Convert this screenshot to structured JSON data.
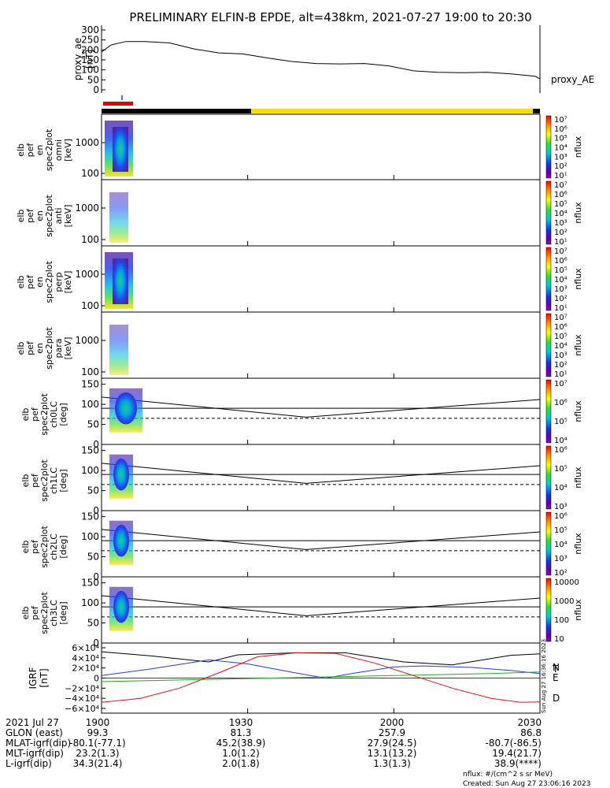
{
  "title": "PRELIMINARY ELFIN-B EPDE, alt=438km, 2021-07-27 19:00 to 20:30",
  "colors": {
    "line": "#000000",
    "eclipse": "#000000",
    "sunlit": "#ffdd00",
    "science": "#e00000",
    "tick": "#3a7fff",
    "n": "#1f3fd8",
    "e": "#22aa22",
    "d": "#dd1111"
  },
  "chart_data": [
    {
      "type": "line",
      "ylabel": [
        "proxy_ae",
        "[nT]"
      ],
      "yticks": [
        "300",
        "250",
        "200",
        "150",
        "100",
        "50",
        "0"
      ],
      "ylim": [
        0,
        300
      ],
      "legend": "proxy_AE",
      "x": [
        0,
        2,
        5,
        9,
        14,
        19,
        24,
        29,
        34,
        39,
        44,
        49,
        54,
        59,
        64,
        69,
        74,
        79,
        84,
        89,
        90
      ],
      "values": [
        190,
        225,
        242,
        242,
        235,
        205,
        185,
        180,
        160,
        142,
        132,
        130,
        132,
        120,
        95,
        88,
        86,
        88,
        80,
        68,
        55
      ]
    },
    {
      "type": "heatmap",
      "ylabel": [
        "elb",
        "pef",
        "en",
        "spec2plot",
        "omni",
        "[keV]"
      ],
      "yticks": [
        "1000",
        "100"
      ],
      "colorbar_ticks": [
        "10⁷",
        "10⁶",
        "10⁵",
        "10⁴",
        "10³",
        "10²",
        "10¹"
      ],
      "colorbar_label": "nflux"
    },
    {
      "type": "heatmap",
      "ylabel": [
        "elb",
        "pef",
        "en",
        "spec2plot",
        "anti",
        "[keV]"
      ],
      "yticks": [
        "1000",
        "100"
      ],
      "colorbar_ticks": [
        "10⁷",
        "10⁶",
        "10⁵",
        "10⁴",
        "10³",
        "10²",
        "10¹"
      ],
      "colorbar_label": "nflux"
    },
    {
      "type": "heatmap",
      "ylabel": [
        "elb",
        "pef",
        "en",
        "spec2plot",
        "perp",
        "[keV]"
      ],
      "yticks": [
        "1000",
        "100"
      ],
      "colorbar_ticks": [
        "10⁷",
        "10⁶",
        "10⁵",
        "10⁴",
        "10³",
        "10²",
        "10¹"
      ],
      "colorbar_label": "nflux"
    },
    {
      "type": "heatmap",
      "ylabel": [
        "elb",
        "pef",
        "en",
        "spec2plot",
        "para",
        "[keV]"
      ],
      "yticks": [
        "1000",
        "100"
      ],
      "colorbar_ticks": [
        "10⁷",
        "10⁶",
        "10⁵",
        "10⁴",
        "10³",
        "10²",
        "10¹"
      ],
      "colorbar_label": "nflux"
    },
    {
      "type": "heatmap",
      "ylabel": [
        "elb",
        "pef",
        "spec2plot",
        "ch0LC",
        "[deg]"
      ],
      "yticks": [
        "150",
        "100",
        "50",
        "0"
      ],
      "colorbar_ticks": [
        "10⁷",
        "10⁶",
        "10⁵",
        "10⁴"
      ],
      "colorbar_label": "nflux"
    },
    {
      "type": "heatmap",
      "ylabel": [
        "elb",
        "pef",
        "spec2plot",
        "ch1LC",
        "[deg]"
      ],
      "yticks": [
        "150",
        "100",
        "50",
        "0"
      ],
      "colorbar_ticks": [
        "10⁶",
        "10⁵",
        "10⁴",
        "10³"
      ],
      "colorbar_label": "nflux"
    },
    {
      "type": "heatmap",
      "ylabel": [
        "elb",
        "pef",
        "spec2plot",
        "ch2LC",
        "[deg]"
      ],
      "yticks": [
        "150",
        "100",
        "50",
        "0"
      ],
      "colorbar_ticks": [
        "10⁶",
        "10⁵",
        "10⁴",
        "10³",
        "10²"
      ],
      "colorbar_label": "nflux"
    },
    {
      "type": "heatmap",
      "ylabel": [
        "elb",
        "pef",
        "spec2plot",
        "ch3LC",
        "[deg]"
      ],
      "yticks": [
        "150",
        "100",
        "50",
        "0"
      ],
      "colorbar_ticks": [
        "10000",
        "1000",
        "100",
        "10"
      ],
      "colorbar_label": "nflux"
    },
    {
      "type": "line",
      "ylabel": [
        "IGRF",
        "[nT]"
      ],
      "yticks": [
        "6×10⁴",
        "4×10⁴",
        "2×10⁴",
        "0",
        "−2×10⁴",
        "−4×10⁴",
        "−6×10⁴"
      ],
      "ylim": [
        -60000,
        60000
      ],
      "series": [
        {
          "name": "T",
          "x": [
            0,
            10,
            22,
            28,
            40,
            50,
            62,
            72,
            84,
            90
          ],
          "values": [
            52000,
            44000,
            32000,
            46000,
            50000,
            50000,
            32000,
            26000,
            45000,
            48000
          ]
        },
        {
          "name": "N",
          "x": [
            0,
            10,
            22,
            30,
            40,
            46,
            52,
            60,
            66,
            76,
            84,
            90
          ],
          "values": [
            5000,
            18000,
            36000,
            28000,
            10000,
            0,
            10000,
            22000,
            24000,
            21000,
            15000,
            9000
          ]
        },
        {
          "name": "E",
          "x": [
            0,
            20,
            40,
            60,
            80,
            90
          ],
          "values": [
            -7000,
            -3000,
            1000,
            5000,
            9000,
            12000
          ]
        },
        {
          "name": "D",
          "x": [
            0,
            8,
            16,
            24,
            32,
            40,
            48,
            56,
            64,
            72,
            80,
            86,
            90
          ],
          "values": [
            -48000,
            -40000,
            -20000,
            10000,
            42000,
            50000,
            49000,
            30000,
            5000,
            -20000,
            -40000,
            -48000,
            -47000
          ]
        }
      ]
    }
  ],
  "x_axis": {
    "ticks": [
      "1900",
      "1930",
      "2000",
      "2030"
    ],
    "rows": [
      {
        "label": "2021 Jul 27",
        "values": [
          "1900",
          "1930",
          "2000",
          "2030"
        ]
      },
      {
        "label": "GLON (east)",
        "values": [
          "99.3",
          "81.3",
          "257.9",
          "86.8"
        ]
      },
      {
        "label": "MLAT-igrf(dip)",
        "values": [
          "-80.1(-77.1)",
          "45.2(38.9)",
          "27.9(24.5)",
          "-80.7(-86.5)"
        ]
      },
      {
        "label": "MLT-igrf(dip)",
        "values": [
          "23.2(1.3)",
          "1.0(1.2)",
          "13.1(13.2)",
          "19.4(21.7)"
        ]
      },
      {
        "label": "L-igrf(dip)",
        "values": [
          "34.3(21.4)",
          "2.0(1.8)",
          "1.3(1.3)",
          "38.9(****)"
        ]
      }
    ]
  },
  "footer": {
    "units": "nflux: #/(cm^2 s sr MeV)",
    "created": "Created: Sun Aug 27 23:06:16 2023",
    "side_stamp": "Sun Aug 27 16:36:16 2023"
  }
}
